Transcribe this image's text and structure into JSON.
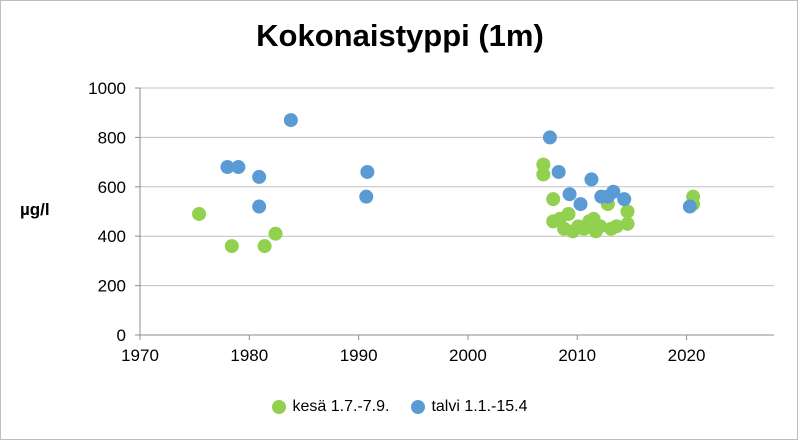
{
  "chart_data": {
    "type": "scatter",
    "title": "Kokonaistyppi (1m)",
    "ylabel": "µg/l",
    "xlabel": "",
    "xlim": [
      1970,
      2028
    ],
    "ylim": [
      0,
      1000
    ],
    "x_ticks": [
      1970,
      1980,
      1990,
      2000,
      2010,
      2020
    ],
    "y_ticks": [
      0,
      200,
      400,
      600,
      800,
      1000
    ],
    "grid": "horizontal",
    "legend_position": "bottom",
    "series": [
      {
        "name": "kesä 1.7.-7.9.",
        "color": "#92d050",
        "points": [
          [
            1975.4,
            490
          ],
          [
            1978.4,
            360
          ],
          [
            1981.4,
            360
          ],
          [
            1982.4,
            410
          ],
          [
            2006.9,
            690
          ],
          [
            2006.9,
            650
          ],
          [
            2007.8,
            550
          ],
          [
            2007.8,
            460
          ],
          [
            2008.4,
            470
          ],
          [
            2008.8,
            430
          ],
          [
            2009.2,
            490
          ],
          [
            2009.6,
            420
          ],
          [
            2010.1,
            440
          ],
          [
            2010.6,
            430
          ],
          [
            2011.1,
            460
          ],
          [
            2011.5,
            470
          ],
          [
            2011.7,
            420
          ],
          [
            2012.1,
            440
          ],
          [
            2012.8,
            530
          ],
          [
            2013.1,
            430
          ],
          [
            2013.6,
            440
          ],
          [
            2014.6,
            500
          ],
          [
            2014.6,
            450
          ],
          [
            2020.6,
            560
          ],
          [
            2020.6,
            530
          ]
        ]
      },
      {
        "name": "talvi 1.1.-15.4",
        "color": "#5b9bd5",
        "points": [
          [
            1978.0,
            680
          ],
          [
            1979.0,
            680
          ],
          [
            1980.9,
            640
          ],
          [
            1980.9,
            520
          ],
          [
            1983.8,
            870
          ],
          [
            1990.8,
            660
          ],
          [
            1990.7,
            560
          ],
          [
            2007.5,
            800
          ],
          [
            2008.3,
            660
          ],
          [
            2009.3,
            570
          ],
          [
            2010.3,
            530
          ],
          [
            2011.3,
            630
          ],
          [
            2012.2,
            560
          ],
          [
            2012.8,
            560
          ],
          [
            2013.3,
            580
          ],
          [
            2014.3,
            550
          ],
          [
            2020.3,
            520
          ]
        ]
      }
    ]
  }
}
